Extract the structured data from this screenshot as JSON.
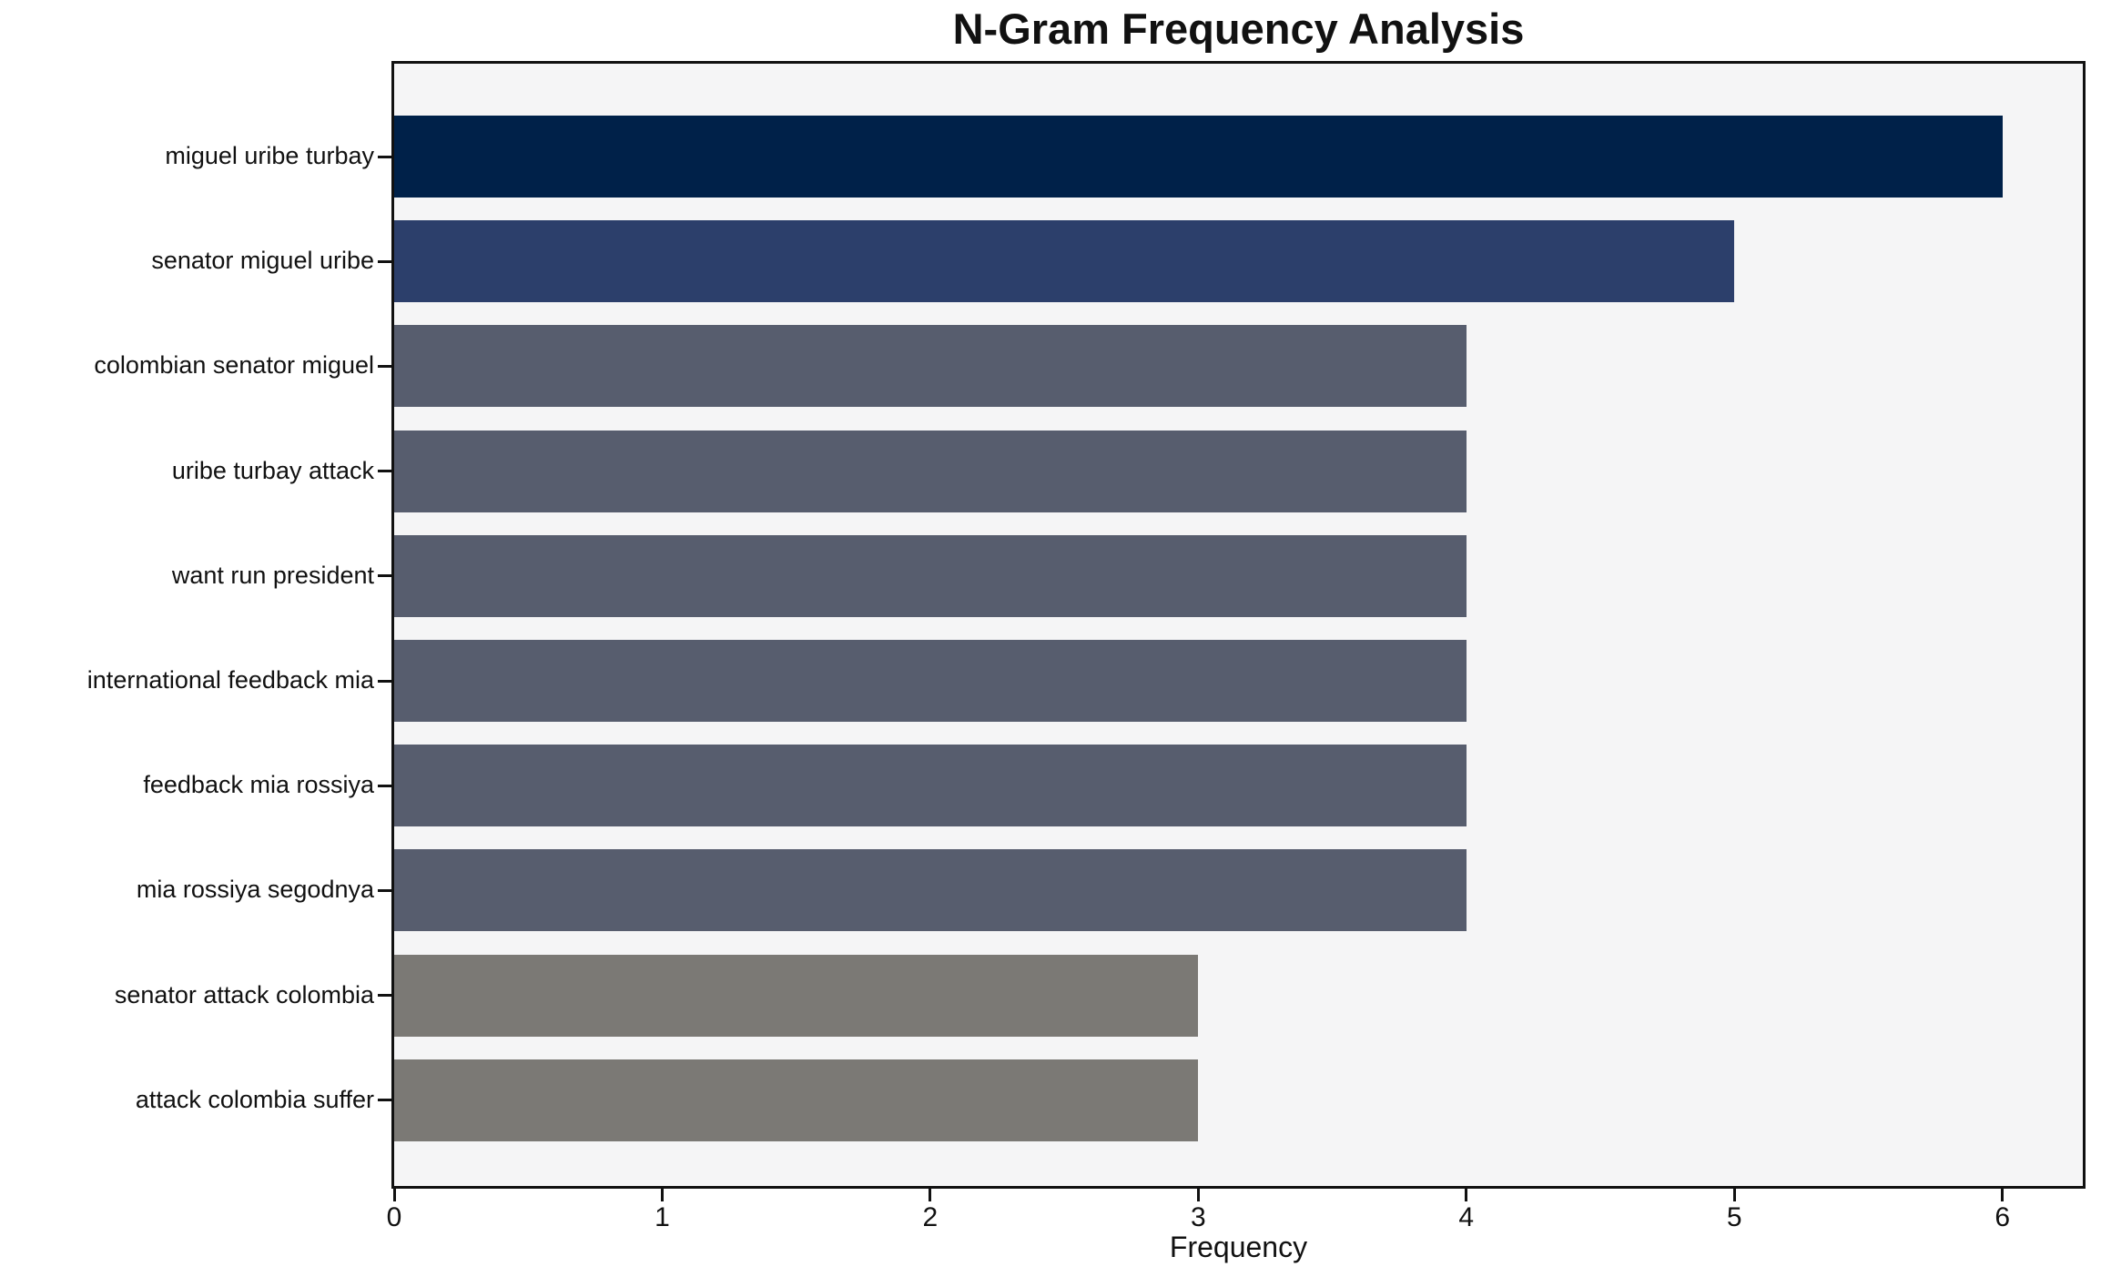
{
  "title": "N-Gram Frequency Analysis",
  "xlabel": "Frequency",
  "chart_data": {
    "type": "bar",
    "orientation": "horizontal",
    "title": "N-Gram Frequency Analysis",
    "xlabel": "Frequency",
    "ylabel": "",
    "categories": [
      "miguel uribe turbay",
      "senator miguel uribe",
      "colombian senator miguel",
      "uribe turbay attack",
      "want run president",
      "international feedback mia",
      "feedback mia rossiya",
      "mia rossiya segodnya",
      "senator attack colombia",
      "attack colombia suffer"
    ],
    "values": [
      6,
      5,
      4,
      4,
      4,
      4,
      4,
      4,
      3,
      3
    ],
    "bar_colors": [
      "#002149",
      "#2c3f6b",
      "#575d6e",
      "#575d6e",
      "#575d6e",
      "#575d6e",
      "#575d6e",
      "#575d6e",
      "#7b7975",
      "#7b7975"
    ],
    "xlim": [
      0,
      6.3
    ],
    "x_ticks": [
      0,
      1,
      2,
      3,
      4,
      5,
      6
    ],
    "grid": false,
    "legend": "none",
    "plot_bg": "#f5f5f6",
    "figure_bg": "#ffffff",
    "spine_color": "#111111"
  }
}
